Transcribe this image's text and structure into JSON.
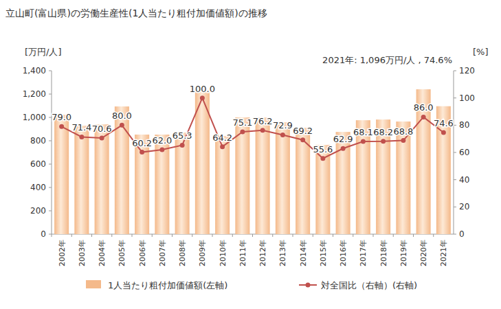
{
  "chart_data": {
    "type": "bar",
    "title": "立山町(富山県)の労働生産性(1人当たり粗付加価値額)の推移",
    "y_label": "[万円/人]",
    "y2_label": "[%]",
    "annotation": "2021年: 1,096万円/人 , 74.6%",
    "categories": [
      "2002年",
      "2003年",
      "2004年",
      "2005年",
      "2006年",
      "2007年",
      "2008年",
      "2009年",
      "2010年",
      "2011年",
      "2012年",
      "2013年",
      "2014年",
      "2015年",
      "2016年",
      "2017年",
      "2018年",
      "2019年",
      "2020年",
      "2021年"
    ],
    "series": [
      {
        "name": "1人当たり粗付加価値額(左軸)",
        "type": "bar",
        "color": "#f4b98a",
        "values": [
          1023,
          929,
          941,
          1094,
          853,
          853,
          870,
          1218,
          841,
          1000,
          1000,
          959,
          912,
          765,
          876,
          976,
          982,
          965,
          1241,
          1096
        ]
      },
      {
        "name": "対全国比（右軸）(右軸)",
        "type": "line",
        "axis": "y2",
        "color": "#c0504d",
        "marker": "circle",
        "data_labels": true,
        "values": [
          79.0,
          71.4,
          70.6,
          80.0,
          60.2,
          62.0,
          65.3,
          100.0,
          64.2,
          75.1,
          76.2,
          72.9,
          69.2,
          55.6,
          62.9,
          68.1,
          68.2,
          68.8,
          86.0,
          74.6
        ],
        "value_labels": [
          "79.0",
          "71.4",
          "70.6",
          "80.0",
          "60.2",
          "62.0",
          "65.3",
          "100.0",
          "64.2",
          "75.1",
          "76.2",
          "72.9",
          "69.2",
          "55.6",
          "62.9",
          "68.1",
          "68.2",
          "68.8",
          "86.0",
          "74.6"
        ]
      }
    ],
    "ylim": [
      0,
      1400
    ],
    "yticks": [
      0,
      200,
      400,
      600,
      800,
      {
        "value": 1000,
        "label": "1,000"
      },
      {
        "value": 1200,
        "label": "1,200"
      },
      {
        "value": 1400,
        "label": "1,400"
      }
    ],
    "y2lim": [
      0,
      120
    ],
    "y2ticks": [
      0,
      20,
      40,
      60,
      80,
      100,
      120
    ],
    "grid": false,
    "legend": "bottom"
  }
}
